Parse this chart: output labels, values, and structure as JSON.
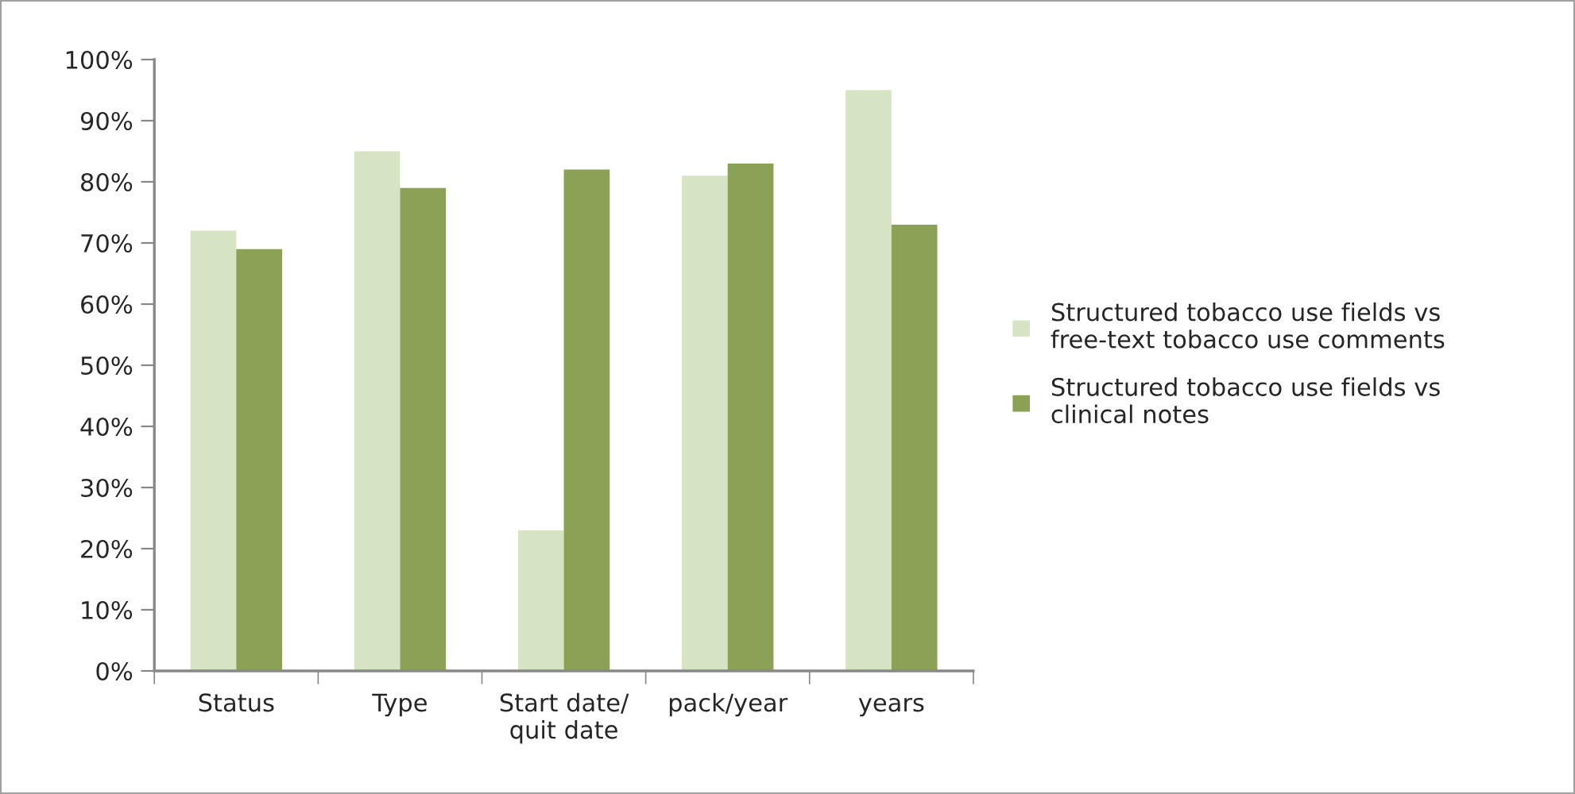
{
  "chart_data": {
    "type": "bar",
    "categories": [
      "Status",
      "Type",
      "Start date/\nquit date",
      "pack/year",
      "years"
    ],
    "series": [
      {
        "name": "Structured tobacco use fields vs\nfree-text tobacco use comments",
        "color": "#d7e4c4",
        "values": [
          72,
          85,
          23,
          81,
          95
        ]
      },
      {
        "name": "Structured tobacco use fields vs\nclinical notes",
        "color": "#8ba156",
        "values": [
          69,
          79,
          82,
          83,
          73
        ]
      }
    ],
    "ylim": [
      0,
      100
    ],
    "yticks": [
      {
        "value": 0,
        "label": "0%"
      },
      {
        "value": 10,
        "label": "10%"
      },
      {
        "value": 20,
        "label": "20%"
      },
      {
        "value": 30,
        "label": "30%"
      },
      {
        "value": 40,
        "label": "40%"
      },
      {
        "value": 50,
        "label": "50%"
      },
      {
        "value": 60,
        "label": "60%"
      },
      {
        "value": 70,
        "label": "70%"
      },
      {
        "value": 80,
        "label": "80%"
      },
      {
        "value": 90,
        "label": "90%"
      },
      {
        "value": 100,
        "label": "100%"
      }
    ],
    "grid": false,
    "legend": "right"
  }
}
